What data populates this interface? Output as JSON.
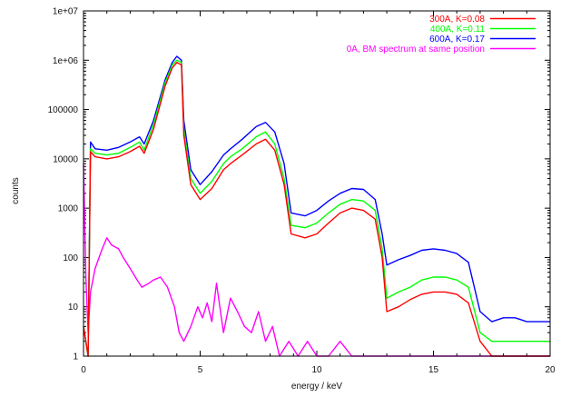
{
  "chart_data": {
    "type": "line",
    "xlabel": "energy / keV",
    "ylabel": "counts",
    "xlim": [
      0,
      20
    ],
    "ylim": [
      1,
      10000000
    ],
    "yscale": "log",
    "x_ticks": [
      0,
      5,
      10,
      15,
      20
    ],
    "y_ticks": [
      {
        "value": 1,
        "label": "1"
      },
      {
        "value": 10,
        "label": "10"
      },
      {
        "value": 100,
        "label": "100"
      },
      {
        "value": 1000,
        "label": "1000"
      },
      {
        "value": 10000,
        "label": "10000"
      },
      {
        "value": 100000,
        "label": "100000"
      },
      {
        "value": 1000000,
        "label": "1e+06"
      },
      {
        "value": 10000000,
        "label": "1e+07"
      }
    ],
    "legend_position": "top-right",
    "series": [
      {
        "name": "300A, K=0.08",
        "color": "#ff0000",
        "x": [
          0.0,
          0.2,
          0.3,
          0.5,
          1.0,
          1.5,
          2.0,
          2.4,
          2.6,
          3.0,
          3.5,
          3.8,
          4.0,
          4.2,
          4.3,
          4.6,
          5.0,
          5.5,
          6.0,
          6.3,
          6.8,
          7.4,
          7.8,
          8.2,
          8.6,
          8.9,
          9.5,
          10.0,
          10.5,
          11.0,
          11.5,
          12.0,
          12.5,
          12.8,
          13.0,
          13.5,
          14.0,
          14.5,
          15.0,
          15.5,
          16.0,
          16.5,
          17.0,
          17.5,
          18.0,
          18.5,
          19.0,
          19.5,
          20.0
        ],
        "y": [
          4,
          1,
          14000,
          11000,
          10000,
          11000,
          14000,
          18000,
          13000,
          40000,
          300000,
          700000,
          900000,
          800000,
          30000,
          3000,
          1500,
          2500,
          6000,
          8000,
          12000,
          20000,
          25000,
          15000,
          3000,
          300,
          250,
          300,
          500,
          800,
          1000,
          900,
          600,
          100,
          8,
          10,
          14,
          18,
          20,
          20,
          18,
          12,
          2,
          1,
          1,
          1,
          1,
          1,
          1
        ]
      },
      {
        "name": "400A, K=0.11",
        "color": "#00ff00",
        "x": [
          0.0,
          0.2,
          0.3,
          0.5,
          1.0,
          1.5,
          2.0,
          2.4,
          2.6,
          3.0,
          3.5,
          3.8,
          4.0,
          4.2,
          4.3,
          4.6,
          5.0,
          5.5,
          6.0,
          6.3,
          6.8,
          7.4,
          7.8,
          8.2,
          8.6,
          8.9,
          9.5,
          10.0,
          10.5,
          11.0,
          11.5,
          12.0,
          12.5,
          12.8,
          13.0,
          13.5,
          14.0,
          14.5,
          15.0,
          15.5,
          16.0,
          16.5,
          17.0,
          17.5,
          18.0,
          18.5,
          19.0,
          19.5,
          20.0
        ],
        "y": [
          4,
          1,
          16000,
          13000,
          12000,
          13000,
          17000,
          22000,
          15000,
          50000,
          350000,
          800000,
          1000000,
          900000,
          40000,
          4000,
          2000,
          3500,
          8000,
          11000,
          16000,
          28000,
          35000,
          20000,
          4000,
          450,
          400,
          500,
          800,
          1200,
          1500,
          1400,
          900,
          150,
          15,
          20,
          25,
          35,
          40,
          40,
          35,
          25,
          3,
          2,
          2,
          2,
          2,
          2,
          2
        ]
      },
      {
        "name": "600A, K=0.17",
        "color": "#0000ff",
        "x": [
          0.0,
          0.2,
          0.3,
          0.5,
          1.0,
          1.5,
          2.0,
          2.4,
          2.6,
          3.0,
          3.5,
          3.8,
          4.0,
          4.2,
          4.3,
          4.6,
          5.0,
          5.5,
          6.0,
          6.3,
          6.8,
          7.4,
          7.8,
          8.2,
          8.6,
          8.9,
          9.5,
          10.0,
          10.5,
          11.0,
          11.5,
          12.0,
          12.5,
          12.8,
          13.0,
          13.5,
          14.0,
          14.5,
          15.0,
          15.5,
          16.0,
          16.5,
          17.0,
          17.5,
          18.0,
          18.5,
          19.0,
          19.5,
          20.0
        ],
        "y": [
          4,
          1,
          22000,
          16000,
          15000,
          17000,
          22000,
          28000,
          20000,
          60000,
          400000,
          900000,
          1200000,
          1000000,
          60000,
          6000,
          3000,
          5500,
          12000,
          16000,
          25000,
          45000,
          55000,
          35000,
          8000,
          800,
          700,
          900,
          1400,
          2000,
          2500,
          2400,
          1500,
          300,
          70,
          90,
          110,
          140,
          150,
          140,
          120,
          80,
          8,
          5,
          6,
          6,
          5,
          5,
          5
        ]
      },
      {
        "name": "0A, BM spectrum at same position",
        "color": "#ff00ff",
        "x": [
          0.0,
          0.1,
          0.2,
          0.3,
          0.5,
          0.8,
          1.0,
          1.2,
          1.5,
          1.7,
          2.0,
          2.3,
          2.5,
          2.8,
          3.0,
          3.3,
          3.6,
          3.9,
          4.1,
          4.3,
          4.6,
          4.9,
          5.1,
          5.3,
          5.5,
          5.7,
          6.0,
          6.3,
          6.6,
          6.9,
          7.2,
          7.5,
          7.8,
          8.1,
          8.4,
          8.8,
          9.2,
          9.6,
          10.0,
          10.5,
          11.0,
          11.5,
          12.0,
          12.5,
          13.0,
          14.0,
          15.0,
          16.0,
          17.0,
          18.0,
          19.0,
          20.0
        ],
        "y": [
          8000,
          40,
          3,
          20,
          60,
          150,
          250,
          180,
          150,
          100,
          60,
          35,
          25,
          30,
          35,
          40,
          25,
          10,
          3,
          2,
          4,
          10,
          6,
          12,
          5,
          30,
          3,
          15,
          8,
          4,
          3,
          8,
          2,
          4,
          1,
          2,
          1,
          2,
          1,
          1,
          2,
          1,
          1,
          1,
          1,
          1,
          1,
          1,
          1,
          1,
          1,
          1
        ]
      }
    ]
  }
}
